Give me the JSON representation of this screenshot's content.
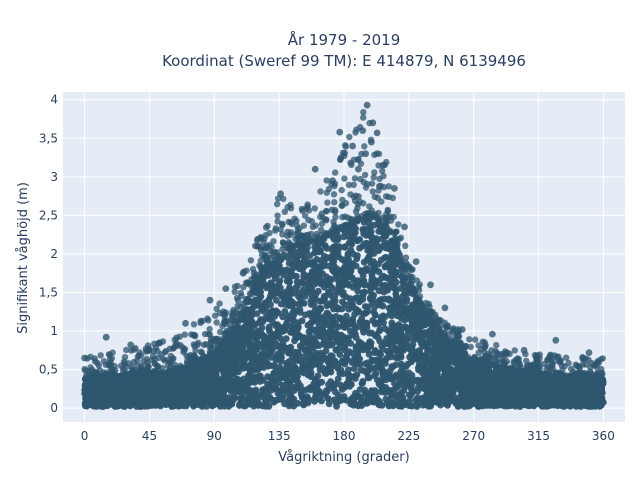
{
  "colors": {
    "plot_bg": "#e5ecf6",
    "grid": "#ffffff",
    "marker": "#2f566f",
    "text": "#2a3f5f"
  },
  "chart_data": {
    "type": "scatter",
    "title_line1": "År 1979 - 2019",
    "title_line2": "Koordinat (Sweref 99 TM): E 414879, N 6139496",
    "xlabel": "Vågriktning (grader)",
    "ylabel": "Signifikant våghöjd (m)",
    "xlim": [
      -15,
      375
    ],
    "ylim": [
      -0.18,
      4.1
    ],
    "x_ticks": [
      0,
      45,
      90,
      135,
      180,
      225,
      270,
      315,
      360
    ],
    "x_tick_labels": [
      "0",
      "45",
      "90",
      "135",
      "180",
      "225",
      "270",
      "315",
      "360"
    ],
    "y_ticks": [
      0,
      0.5,
      1,
      1.5,
      2,
      2.5,
      3,
      3.5,
      4
    ],
    "y_tick_labels": [
      "0",
      "0,5",
      "1",
      "1,5",
      "2",
      "2,5",
      "3",
      "3,5",
      "4"
    ],
    "grid": true,
    "marker_color": "#2f566f",
    "envelope": {
      "x": [
        0,
        20,
        45,
        70,
        90,
        105,
        115,
        125,
        135,
        150,
        165,
        180,
        195,
        210,
        220,
        230,
        245,
        270,
        300,
        330,
        360
      ],
      "bulk_top": [
        0.38,
        0.42,
        0.45,
        0.5,
        0.72,
        1.05,
        1.45,
        1.8,
        2.05,
        2.1,
        2.2,
        2.35,
        2.5,
        2.4,
        1.9,
        1.45,
        1.0,
        0.6,
        0.48,
        0.42,
        0.38
      ],
      "max": [
        0.65,
        0.75,
        0.82,
        1.0,
        1.3,
        1.7,
        2.0,
        2.4,
        2.75,
        2.6,
        2.9,
        3.5,
        3.9,
        3.2,
        2.3,
        1.7,
        1.2,
        0.9,
        0.75,
        0.7,
        0.65
      ]
    },
    "peak_points": [
      {
        "x": 196,
        "y": 3.93
      },
      {
        "x": 200,
        "y": 3.7
      },
      {
        "x": 193,
        "y": 3.6
      },
      {
        "x": 177,
        "y": 3.58
      },
      {
        "x": 203,
        "y": 3.57
      },
      {
        "x": 199,
        "y": 3.45
      },
      {
        "x": 186,
        "y": 3.4
      },
      {
        "x": 195,
        "y": 3.3
      },
      {
        "x": 178,
        "y": 3.25
      },
      {
        "x": 160,
        "y": 3.1
      },
      {
        "x": 190,
        "y": 3.1
      },
      {
        "x": 207,
        "y": 3.15
      },
      {
        "x": 136,
        "y": 2.78
      },
      {
        "x": 172,
        "y": 2.95
      },
      {
        "x": 215,
        "y": 2.85
      },
      {
        "x": 222,
        "y": 2.35
      },
      {
        "x": 230,
        "y": 1.9
      },
      {
        "x": 240,
        "y": 1.6
      },
      {
        "x": 250,
        "y": 1.3
      },
      {
        "x": 262,
        "y": 1.02
      },
      {
        "x": 283,
        "y": 0.96
      },
      {
        "x": 15,
        "y": 0.92
      },
      {
        "x": 32,
        "y": 0.82
      },
      {
        "x": 70,
        "y": 1.1
      },
      {
        "x": 87,
        "y": 1.4
      },
      {
        "x": 98,
        "y": 1.55
      },
      {
        "x": 110,
        "y": 1.75
      },
      {
        "x": 120,
        "y": 2.1
      },
      {
        "x": 327,
        "y": 0.88
      },
      {
        "x": 305,
        "y": 0.75
      },
      {
        "x": 350,
        "y": 0.72
      },
      {
        "x": 0,
        "y": 0.65
      }
    ]
  }
}
